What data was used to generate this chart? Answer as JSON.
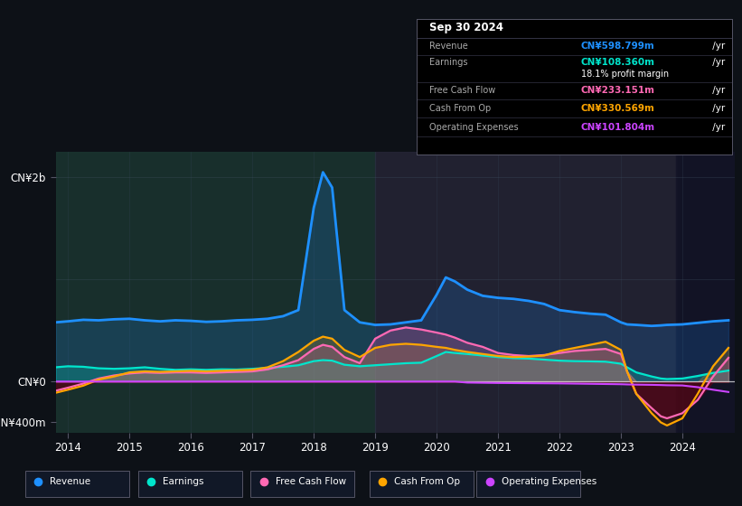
{
  "bg_color": "#0d1117",
  "plot_bg_color": "#111827",
  "ylabel_top": "CN¥2b",
  "ylabel_mid": "CN¥0",
  "ylabel_bot": "-CN¥400m",
  "info_box": {
    "date": "Sep 30 2024",
    "rows": [
      {
        "label": "Revenue",
        "value": "CN¥598.799m /yr",
        "value_color": "#1e90ff"
      },
      {
        "label": "Earnings",
        "value": "CN¥108.360m /yr",
        "value_color": "#00e5cc"
      },
      {
        "label": "",
        "value": "18.1% profit margin",
        "value_color": "#ffffff"
      },
      {
        "label": "Free Cash Flow",
        "value": "CN¥233.151m /yr",
        "value_color": "#ff69b4"
      },
      {
        "label": "Cash From Op",
        "value": "CN¥330.569m /yr",
        "value_color": "#ffa500"
      },
      {
        "label": "Operating Expenses",
        "value": "CN¥101.804m /yr",
        "value_color": "#cc44ff"
      }
    ]
  },
  "legend_items": [
    {
      "label": "Revenue",
      "color": "#1e90ff"
    },
    {
      "label": "Earnings",
      "color": "#00e5cc"
    },
    {
      "label": "Free Cash Flow",
      "color": "#ff69b4"
    },
    {
      "label": "Cash From Op",
      "color": "#ffa500"
    },
    {
      "label": "Operating Expenses",
      "color": "#cc44ff"
    }
  ],
  "rev_color": "#1e90ff",
  "earn_color": "#00e5cc",
  "fcf_color": "#ff69b4",
  "cfo_color": "#ffa500",
  "opex_color": "#cc44ff",
  "region1_color": "#1a3a35",
  "region2_color": "#252535",
  "region3_color": "#1a1a2e"
}
